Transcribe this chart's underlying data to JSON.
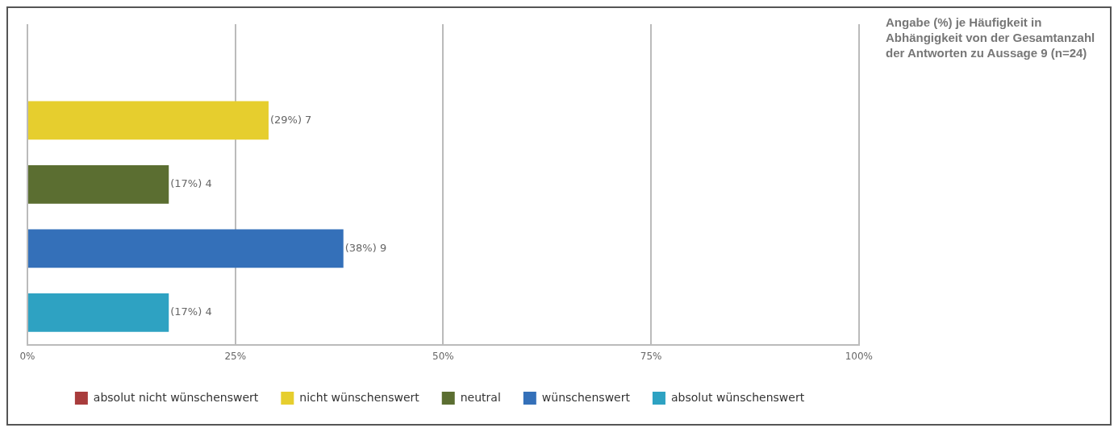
{
  "chart_data": {
    "type": "bar",
    "orientation": "horizontal",
    "title": "Angabe (%) je Häufigkeit in Abhängigkeit von der Gesamtanzahl der Antworten zu Aussage 9 (n=24)",
    "categories": [
      null,
      null,
      null,
      null,
      null
    ],
    "series": [
      {
        "name": "absolut nicht wünschenswert",
        "color": "#a83c3c",
        "values": [
          0,
          null,
          null,
          null,
          null
        ],
        "value_labels": [
          null,
          null,
          null,
          null,
          null
        ]
      },
      {
        "name": "nicht wünschenswert",
        "color": "#e6ce2e",
        "values": [
          null,
          29,
          null,
          null,
          null
        ],
        "value_labels": [
          null,
          "(29%) 7",
          null,
          null,
          null
        ]
      },
      {
        "name": "neutral",
        "color": "#5b6e31",
        "values": [
          null,
          null,
          17,
          null,
          null
        ],
        "value_labels": [
          null,
          null,
          "(17%) 4",
          null,
          null
        ]
      },
      {
        "name": "wünschenswert",
        "color": "#3470b9",
        "values": [
          null,
          null,
          null,
          38,
          null
        ],
        "value_labels": [
          null,
          null,
          null,
          "(38%) 9",
          null
        ]
      },
      {
        "name": "absolut wünschenswert",
        "color": "#2ea2c2",
        "values": [
          null,
          null,
          null,
          null,
          17
        ],
        "value_labels": [
          null,
          null,
          null,
          null,
          "(17%) 4"
        ]
      }
    ],
    "xlim": [
      0,
      100
    ],
    "xticks": [
      {
        "value": 0,
        "label": "0%"
      },
      {
        "value": 25,
        "label": "25%"
      },
      {
        "value": 50,
        "label": "50%"
      },
      {
        "value": 75,
        "label": "75%"
      },
      {
        "value": 100,
        "label": "100%"
      }
    ],
    "grid": "x",
    "legend": "bottom"
  }
}
